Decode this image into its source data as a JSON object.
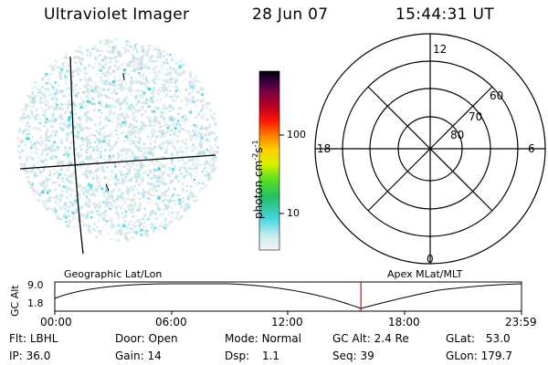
{
  "header": {
    "title": "Ultraviolet Imager",
    "date": "28 Jun 07",
    "time": "15:44:31 UT"
  },
  "colorbar": {
    "unit_label": "photon cm",
    "unit_exp1": "-2",
    "unit_mid": "s",
    "unit_exp2": "-1",
    "ticks": [
      "100",
      "10"
    ]
  },
  "polar_plot": {
    "mlt_labels": {
      "top": "12",
      "left": "18",
      "right": "6",
      "bottom": "0"
    },
    "lat_labels": [
      "60",
      "70",
      "80"
    ]
  },
  "timeline": {
    "left_label": "Geographic Lat/Lon",
    "right_label": "Apex MLat/MLT",
    "y_axis_title": "GC Alt",
    "y_ticks": [
      "9.0",
      "1.8"
    ],
    "x_ticks": [
      "00:00",
      "06:00",
      "12:00",
      "18:00",
      "23:59"
    ],
    "current_time_fraction": 0.6559
  },
  "info": {
    "flt_label": "Flt:",
    "flt_value": "LBHL",
    "ip_label": "IP:",
    "ip_value": "36.0",
    "door_label": "Door:",
    "door_value": "Open",
    "gain_label": "Gain:",
    "gain_value": "14",
    "mode_label": "Mode:",
    "mode_value": "Normal",
    "dsp_label": "Dsp:",
    "dsp_value": "1.1",
    "gcalt_label": "GC Alt:",
    "gcalt_value": "2.4 Re",
    "seq_label": "Seq:",
    "seq_value": "39",
    "glat_label": "GLat:",
    "glat_value": "53.0",
    "glon_label": "GLon:",
    "glon_value": "179.7"
  },
  "colors": {
    "timeline_marker": "#e00000",
    "speckle_cyan": "#3cd2e0",
    "speckle_light": "#b8e4ea",
    "speckle_grey": "#d8e2e4"
  }
}
